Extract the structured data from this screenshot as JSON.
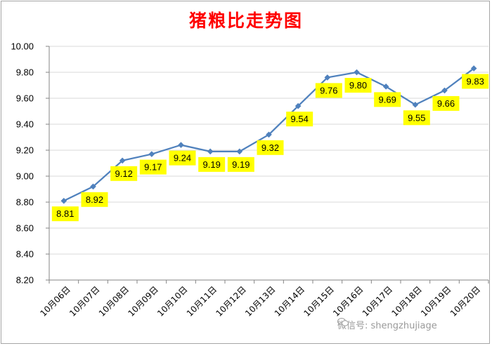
{
  "chart_data": {
    "type": "line",
    "title": "猪粮比走势图",
    "categories": [
      "10月06日",
      "10月07日",
      "10月08日",
      "10月09日",
      "10月10日",
      "10月11日",
      "10月12日",
      "10月13日",
      "10月14日",
      "10月15日",
      "10月16日",
      "10月17日",
      "10月18日",
      "10月19日",
      "10月20日"
    ],
    "values": [
      8.81,
      8.92,
      9.12,
      9.17,
      9.24,
      9.19,
      9.19,
      9.32,
      9.54,
      9.76,
      9.8,
      9.69,
      9.55,
      9.66,
      9.83
    ],
    "data_labels": [
      "8.81",
      "8.92",
      "9.12",
      "9.17",
      "9.24",
      "9.19",
      "9.19",
      "9.32",
      "9.54",
      "9.76",
      "9.80",
      "9.69",
      "9.55",
      "9.66",
      "9.83"
    ],
    "y_ticks": [
      "8.20",
      "8.40",
      "8.60",
      "8.80",
      "9.00",
      "9.20",
      "9.40",
      "9.60",
      "9.80",
      "10.00"
    ],
    "ylim": [
      8.2,
      10.0
    ],
    "xlabel": "",
    "ylabel": "",
    "grid": true,
    "legend": "none",
    "colors": {
      "line": "#4f81bd",
      "label_bg": "#ffff00",
      "title": "#ff0000",
      "grid": "#d9d9d9"
    }
  },
  "watermark": {
    "text": "微信号: shengzhujiage",
    "icon": "wechat-icon"
  }
}
